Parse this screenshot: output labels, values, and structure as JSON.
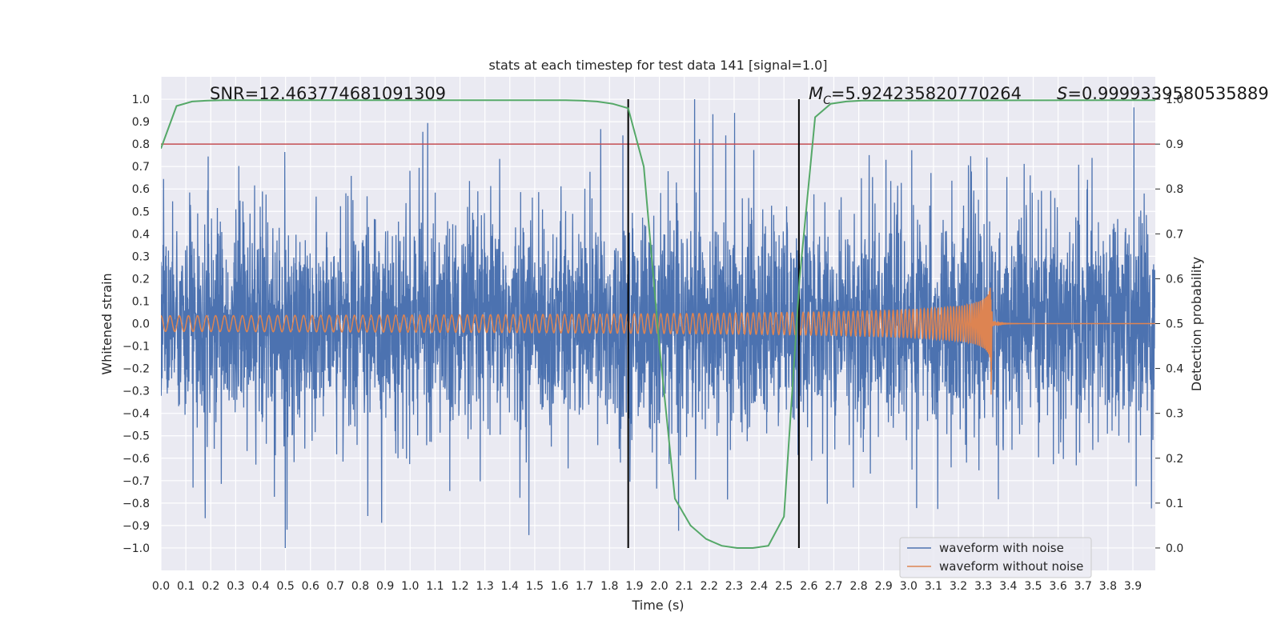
{
  "chart_data": {
    "type": "line",
    "title": "stats at each timestep for test data 141 [signal=1.0]",
    "xlabel": "Time (s)",
    "ylabel": "Whitened strain",
    "y2label": "Detection probability",
    "xlim": [
      0.0,
      3.99
    ],
    "ylim": [
      -1.1,
      1.1
    ],
    "y2lim": [
      -0.05,
      1.05
    ],
    "xticks": [
      "0.0",
      "0.1",
      "0.2",
      "0.3",
      "0.4",
      "0.5",
      "0.6",
      "0.7",
      "0.8",
      "0.9",
      "1.0",
      "1.1",
      "1.2",
      "1.3",
      "1.4",
      "1.5",
      "1.6",
      "1.7",
      "1.8",
      "1.9",
      "2.0",
      "2.1",
      "2.2",
      "2.3",
      "2.4",
      "2.5",
      "2.6",
      "2.7",
      "2.8",
      "2.9",
      "3.0",
      "3.1",
      "3.2",
      "3.3",
      "3.4",
      "3.5",
      "3.6",
      "3.7",
      "3.8",
      "3.9"
    ],
    "yticks": [
      "1.0",
      "0.9",
      "0.8",
      "0.7",
      "0.6",
      "0.5",
      "0.4",
      "0.3",
      "0.2",
      "0.1",
      "0.0",
      "−0.1",
      "−0.2",
      "−0.3",
      "−0.4",
      "−0.5",
      "−0.6",
      "−0.7",
      "−0.8",
      "−0.9",
      "−1.0"
    ],
    "y2ticks": [
      "1.0",
      "0.9",
      "0.8",
      "0.7",
      "0.6",
      "0.5",
      "0.4",
      "0.3",
      "0.2",
      "0.1",
      "0.0"
    ],
    "annotations": {
      "snr": "SNR=12.463774681091309",
      "mc_symbol": "M",
      "mc_sub": "C",
      "mc_value": "=5.924235820770264",
      "s_symbol": "S",
      "s_value": "=0.9999339580535889"
    },
    "threshold": {
      "axis": "right",
      "value": 0.9,
      "color": "#c44e52"
    },
    "vlines": [
      1.875,
      2.56
    ],
    "noisy_waveform": {
      "name": "waveform with noise",
      "color": "#4c72b0",
      "sample_rate": 1024,
      "typical_amplitude": 0.3,
      "peak_range": [
        -1.0,
        1.0
      ]
    },
    "clean_waveform": {
      "name": "waveform without noise",
      "color": "#dd8452",
      "type": "chirp",
      "start_amplitude": 0.035,
      "end_amplitude": 0.29,
      "end_min": -0.38,
      "start_freq_hz": 27,
      "merger_time": 3.335
    },
    "detection_probability": {
      "color": "#55a868",
      "x": [
        0.0,
        0.0625,
        0.125,
        0.1875,
        0.25,
        1.5625,
        1.625,
        1.6875,
        1.75,
        1.8125,
        1.875,
        1.9375,
        2.0,
        2.0625,
        2.125,
        2.1875,
        2.25,
        2.3125,
        2.375,
        2.4375,
        2.5,
        2.5625,
        2.625,
        2.6875,
        2.75,
        2.8125,
        3.99
      ],
      "y": [
        0.89,
        0.985,
        0.995,
        0.997,
        0.998,
        0.998,
        0.998,
        0.997,
        0.995,
        0.99,
        0.98,
        0.85,
        0.45,
        0.11,
        0.05,
        0.02,
        0.005,
        0.0,
        0.0,
        0.005,
        0.07,
        0.6,
        0.96,
        0.99,
        0.995,
        0.997,
        0.998
      ]
    },
    "legend": {
      "location": "lower-right",
      "entries": [
        "waveform with noise",
        "waveform without noise"
      ]
    }
  }
}
